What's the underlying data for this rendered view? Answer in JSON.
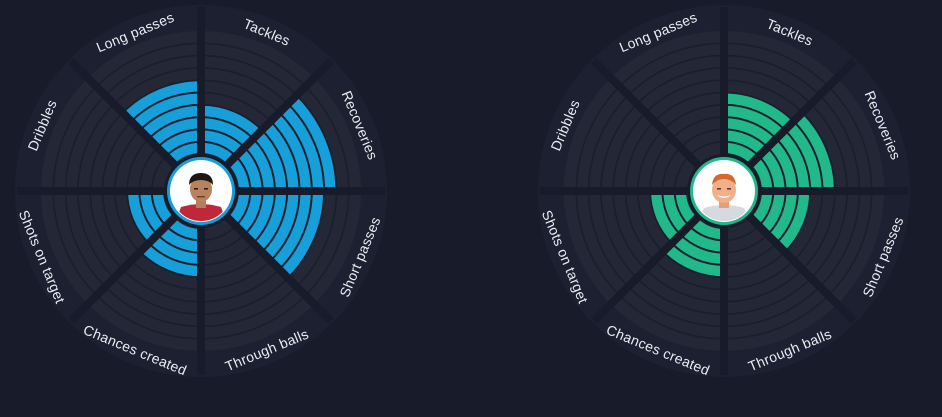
{
  "chart_data": [
    {
      "type": "radial-bar",
      "player": "player-left",
      "color": "#169fd8",
      "max_rings": 10,
      "categories": [
        "Tackles",
        "Recoveries",
        "Short passes",
        "Through balls",
        "Chances created",
        "Shots on target",
        "Dribbles",
        "Long passes"
      ],
      "values": [
        4,
        8,
        7,
        0,
        4,
        3,
        0,
        6
      ]
    },
    {
      "type": "radial-bar",
      "player": "player-right",
      "color": "#22b98a",
      "max_rings": 10,
      "categories": [
        "Tackles",
        "Recoveries",
        "Short passes",
        "Through balls",
        "Chances created",
        "Shots on target",
        "Dribbles",
        "Long passes"
      ],
      "values": [
        5,
        6,
        4,
        0,
        4,
        3,
        0,
        0
      ]
    }
  ],
  "labels": [
    "Tackles",
    "Recoveries",
    "Short passes",
    "Through balls",
    "Chances created",
    "Shots on target",
    "Dribbles",
    "Long passes"
  ],
  "colors": {
    "background": "#181c2a",
    "outer_ring": "#1d2030",
    "segment": "#232736",
    "grid": "#1b1e2c",
    "divider": "#181c2a"
  },
  "icons": {
    "left_avatar": "player-photo-left",
    "right_avatar": "player-photo-right"
  }
}
